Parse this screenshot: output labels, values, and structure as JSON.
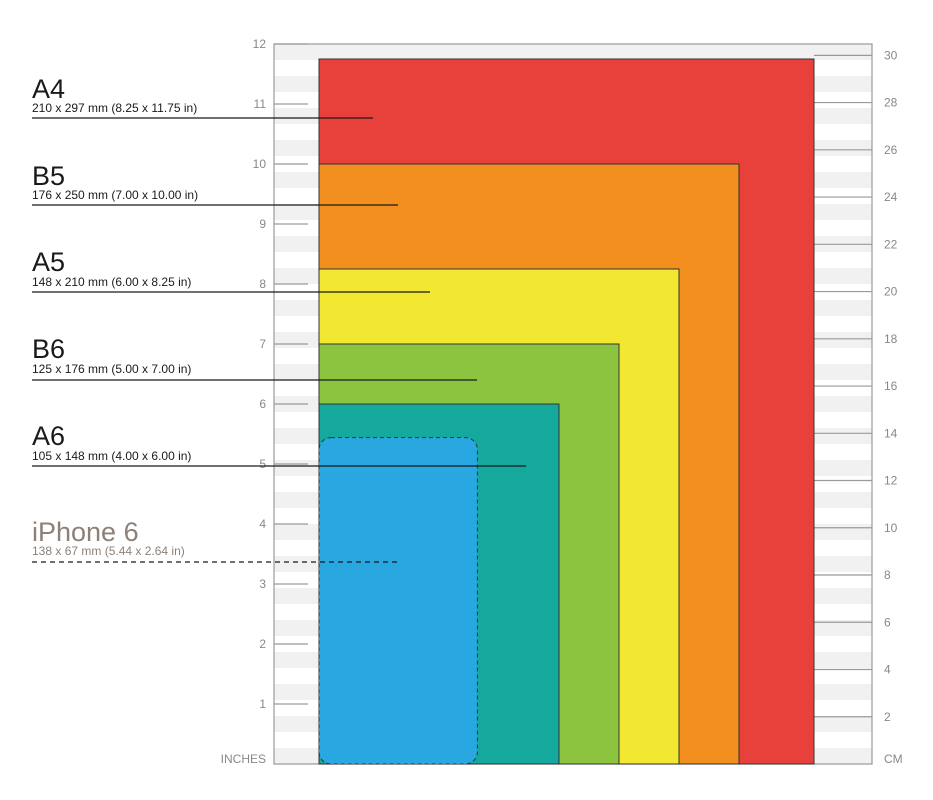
{
  "axes": {
    "left_unit": "INCHES",
    "right_unit": "CM",
    "inch_ticks": [
      "1",
      "2",
      "3",
      "4",
      "5",
      "6",
      "7",
      "8",
      "9",
      "10",
      "11",
      "12"
    ],
    "cm_ticks": [
      "2",
      "4",
      "6",
      "8",
      "10",
      "12",
      "14",
      "16",
      "18",
      "20",
      "22",
      "24",
      "26",
      "28",
      "30"
    ]
  },
  "paper_sizes": [
    {
      "id": "a4",
      "name": "A4",
      "dims": "210 x 297 mm (8.25 x 11.75 in)",
      "width_in": 8.25,
      "height_in": 11.75,
      "color": "#e8403a"
    },
    {
      "id": "b5",
      "name": "B5",
      "dims": "176 x 250 mm (7.00 x 10.00 in)",
      "width_in": 7.0,
      "height_in": 10.0,
      "color": "#f28f1f"
    },
    {
      "id": "a5",
      "name": "A5",
      "dims": "148 x 210 mm (6.00 x 8.25 in)",
      "width_in": 6.0,
      "height_in": 8.25,
      "color": "#f2e832"
    },
    {
      "id": "b6",
      "name": "B6",
      "dims": "125 x 176 mm (5.00 x 7.00 in)",
      "width_in": 5.0,
      "height_in": 7.0,
      "color": "#8dc43f"
    },
    {
      "id": "a6",
      "name": "A6",
      "dims": "105 x 148 mm (4.00 x 6.00 in)",
      "width_in": 4.0,
      "height_in": 6.0,
      "color": "#15a89c"
    }
  ],
  "phone": {
    "name": "iPhone 6",
    "dims": "138 x 67 mm (5.44 x 2.64 in)",
    "width_in": 2.64,
    "height_in": 5.44,
    "color": "#28a7e1"
  }
}
